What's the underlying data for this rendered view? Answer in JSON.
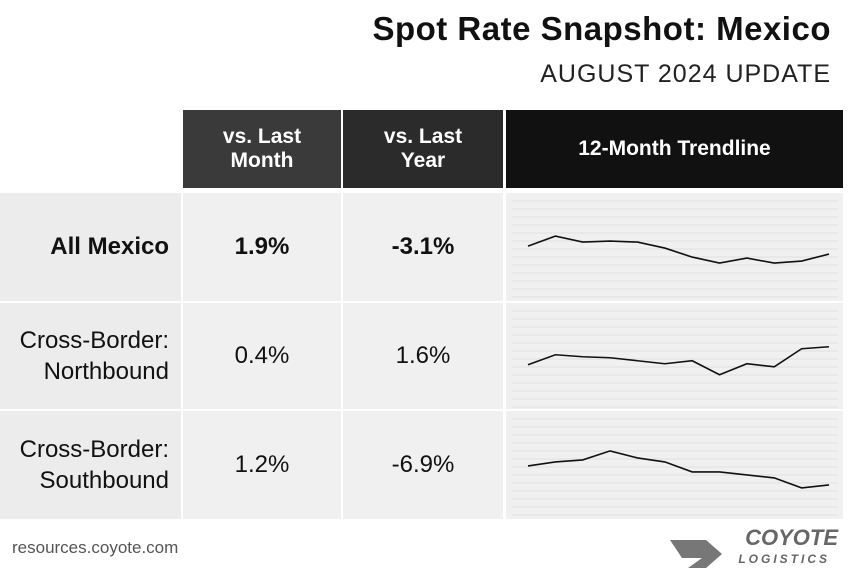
{
  "header": {
    "title": "Spot Rate Snapshot: Mexico",
    "subtitle": "AUGUST 2024 UPDATE"
  },
  "table": {
    "columns": [
      "vs. Last Month",
      "vs. Last Year",
      "12-Month Trendline"
    ],
    "rows": [
      {
        "label": "All Mexico",
        "month": "1.9%",
        "year": "-3.1%",
        "trend": [
          50,
          60,
          54,
          55,
          54,
          48,
          39,
          33,
          38,
          33,
          35,
          42
        ]
      },
      {
        "label": "Cross-Border: Northbound",
        "month": "0.4%",
        "year": "1.6%",
        "trend": [
          44,
          54,
          52,
          51,
          48,
          45,
          48,
          34,
          45,
          42,
          60,
          62
        ]
      },
      {
        "label": "Cross-Border: Southbound",
        "month": "1.2%",
        "year": "-6.9%",
        "trend": [
          26,
          30,
          32,
          41,
          34,
          30,
          20,
          20,
          17,
          14,
          4,
          7
        ]
      }
    ]
  },
  "footer": {
    "url": "resources.coyote.com",
    "logo": "COYOTE",
    "logo_sub": "LOGISTICS"
  }
}
